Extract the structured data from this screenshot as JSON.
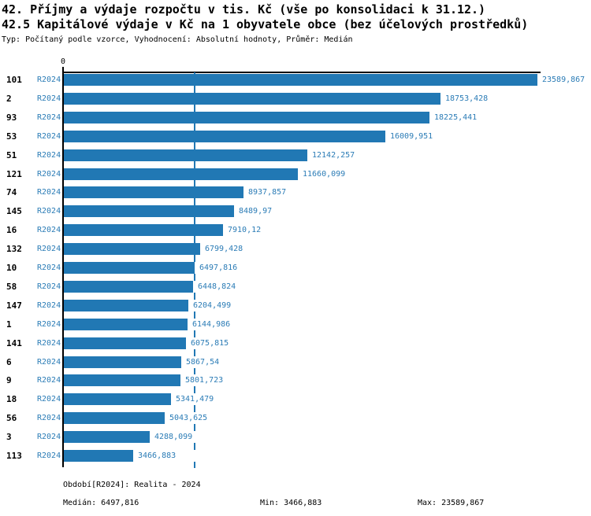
{
  "title_line1": "42. Příjmy a výdaje rozpočtu v tis. Kč (vše po konsolidaci k 31.12.)",
  "title_line2": "42.5 Kapitálové výdaje v Kč na 1 obyvatele obce (bez účelových prostředků)",
  "subtitle": "Typ: Počítaný podle vzorce, Vyhodnocení: Absolutní hodnoty, Průměr: Medián",
  "axis": {
    "zero_label": "0"
  },
  "chart_data": {
    "type": "bar",
    "orientation": "horizontal",
    "title": "42.5 Kapitálové výdaje v Kč na 1 obyvatele obce (bez účelových prostředků)",
    "xlabel": "",
    "ylabel": "",
    "xlim": [
      0,
      23589.867
    ],
    "grid": false,
    "legend_position": "none",
    "series_label": "R2024",
    "bar_color": "#2178b4",
    "text_blue": "#2b7cb6",
    "median_value": 6497.816,
    "median_line": true,
    "categories": [
      "101",
      "2",
      "93",
      "53",
      "51",
      "121",
      "74",
      "145",
      "16",
      "132",
      "10",
      "58",
      "147",
      "1",
      "141",
      "6",
      "9",
      "18",
      "56",
      "3",
      "113"
    ],
    "values": [
      23589.867,
      18753.428,
      18225.441,
      16009.951,
      12142.257,
      11660.099,
      8937.857,
      8489.97,
      7910.12,
      6799.428,
      6497.816,
      6448.824,
      6204.499,
      6144.986,
      6075.815,
      5867.54,
      5801.723,
      5341.479,
      5043.625,
      4288.099,
      3466.883
    ],
    "value_labels": [
      "23589,867",
      "18753,428",
      "18225,441",
      "16009,951",
      "12142,257",
      "11660,099",
      "8937,857",
      "8489,97",
      "7910,12",
      "6799,428",
      "6497,816",
      "6448,824",
      "6204,499",
      "6144,986",
      "6075,815",
      "5867,54",
      "5801,723",
      "5341,479",
      "5043,625",
      "4288,099",
      "3466,883"
    ]
  },
  "footer": {
    "period": "Období[R2024]: Realita - 2024",
    "median": "Medián: 6497,816",
    "min": "Min: 3466,883",
    "max": "Max: 23589,867"
  }
}
